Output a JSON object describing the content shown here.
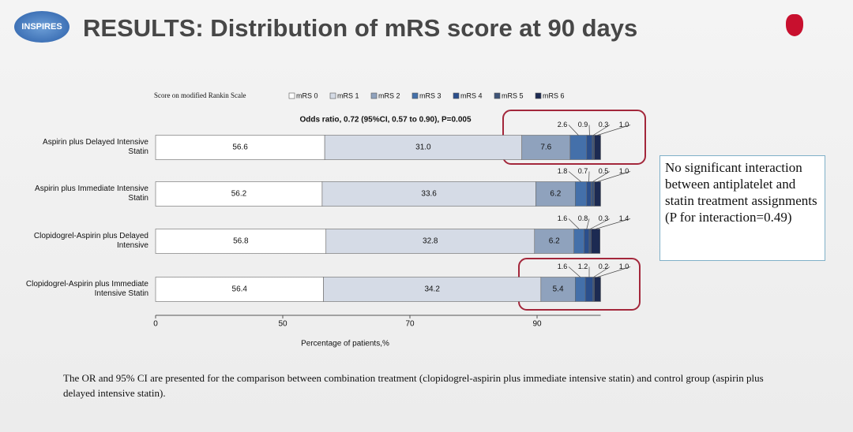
{
  "logo_text": "INSPIRES",
  "chart_data": {
    "type": "stacked-bar-horizontal",
    "title": "RESULTS: Distribution of mRS score at 90 days",
    "legend_title": "Score on modified Rankin Scale",
    "annotation": "Odds ratio, 0.72 (95%CI, 0.57 to 0.90), P=0.005",
    "x_label": "Percentage of patients,%",
    "categories": [
      "Aspirin plus Delayed Intensive Statin",
      "Aspirin plus Immediate Intensive Statin",
      "Clopidogrel-Aspirin plus Delayed Intensive",
      "Clopidogrel-Aspirin plus Immediate Intensive Statin"
    ],
    "series": [
      {
        "name": "mRS 0",
        "color": "#ffffff",
        "values": [
          56.6,
          56.2,
          56.8,
          56.4
        ],
        "value_labels": [
          "56.6",
          "56.2",
          "56.8",
          "56.4"
        ]
      },
      {
        "name": "mRS 1",
        "color": "#d5dbe6",
        "values": [
          31.0,
          33.6,
          32.8,
          34.2
        ],
        "value_labels": [
          "31.0",
          "33.6",
          "32.8",
          "34.2"
        ]
      },
      {
        "name": "mRS 2",
        "color": "#8fa2bd",
        "values": [
          7.6,
          6.2,
          6.2,
          5.4
        ],
        "value_labels": [
          "7.6",
          "6.2",
          "6.2",
          "5.4"
        ]
      },
      {
        "name": "mRS 3",
        "color": "#4470aa",
        "values": [
          2.6,
          1.8,
          1.6,
          1.6
        ],
        "value_labels": [
          "2.6",
          "1.8",
          "1.6",
          "1.6"
        ]
      },
      {
        "name": "mRS 4",
        "color": "#2b4f8c",
        "values": [
          0.9,
          0.7,
          0.8,
          1.2
        ],
        "value_labels": [
          "0.9",
          "0.7",
          "0.8",
          "1.2"
        ]
      },
      {
        "name": "mRS 5",
        "color": "#3e5478",
        "values": [
          0.3,
          0.5,
          0.3,
          0.2
        ],
        "value_labels": [
          "0.3",
          "0.5",
          "0.3",
          "0.2"
        ]
      },
      {
        "name": "mRS 6",
        "color": "#1c2a52",
        "values": [
          1.0,
          1.0,
          1.4,
          1.0
        ],
        "value_labels": [
          "1.0",
          "1.0",
          "1.4",
          "1.0"
        ]
      }
    ],
    "xlim": [
      0,
      100
    ],
    "xticks": [
      0,
      50,
      70,
      90
    ]
  },
  "side_note": "No significant interaction between antiplatelet and statin treatment assignments (P for interaction=0.49)",
  "footnote": "The OR and 95% CI are presented for the comparison between combination treatment (clopidogrel-aspirin plus immediate intensive statin) and control group (aspirin plus delayed intensive statin)."
}
